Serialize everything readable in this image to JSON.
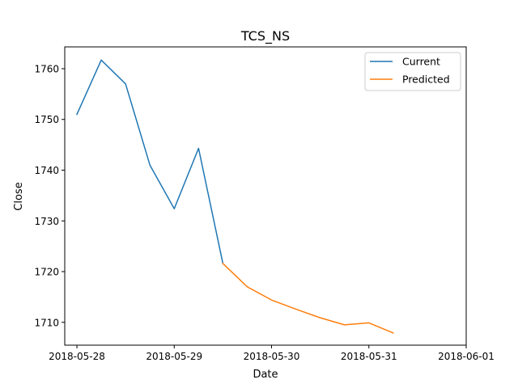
{
  "chart_data": {
    "type": "line",
    "title": "TCS_NS",
    "xlabel": "Date",
    "ylabel": "Close",
    "x_ticks": [
      "2018-05-28",
      "2018-05-29",
      "2018-05-30",
      "2018-05-31",
      "2018-06-01"
    ],
    "y_ticks": [
      1710,
      1720,
      1730,
      1740,
      1750,
      1760
    ],
    "xlim": [
      "2018-05-27 21:00",
      "2018-06-01 00:00"
    ],
    "ylim": [
      1705.5,
      1764.3
    ],
    "grid": false,
    "legend_position": "top-right",
    "series": [
      {
        "name": "Current",
        "color": "#1f77b4",
        "x": [
          "2018-05-28 00:00",
          "2018-05-28 06:00",
          "2018-05-28 12:00",
          "2018-05-28 18:00",
          "2018-05-29 00:00",
          "2018-05-29 06:00",
          "2018-05-29 12:00"
        ],
        "y": [
          1751.0,
          1761.7,
          1757.0,
          1741.0,
          1732.4,
          1744.3,
          1721.6
        ]
      },
      {
        "name": "Predicted",
        "color": "#ff7f0e",
        "x": [
          "2018-05-29 12:00",
          "2018-05-29 18:00",
          "2018-05-30 00:00",
          "2018-05-30 06:00",
          "2018-05-30 12:00",
          "2018-05-30 18:00",
          "2018-05-31 00:00",
          "2018-05-31 06:00"
        ],
        "y": [
          1721.6,
          1717.0,
          1714.4,
          1712.6,
          1710.9,
          1709.5,
          1709.9,
          1707.9
        ]
      }
    ]
  }
}
